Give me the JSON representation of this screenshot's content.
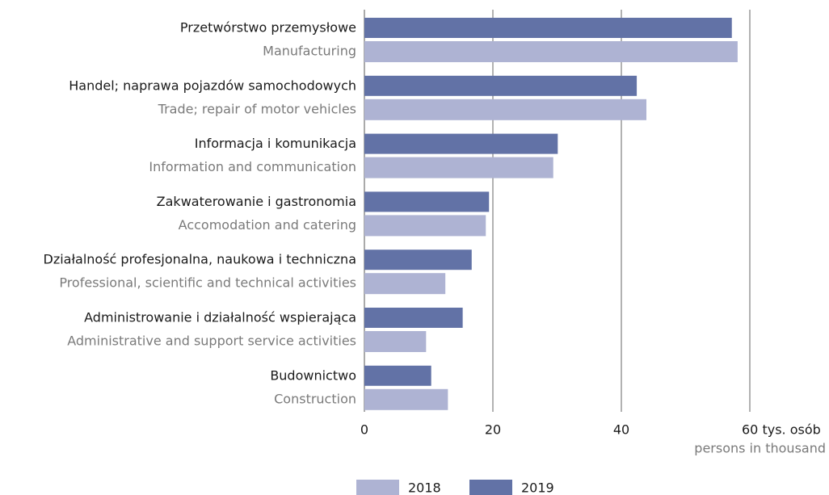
{
  "chart_data": {
    "type": "bar",
    "orientation": "horizontal",
    "categories": [
      "Przetwórstwo przemysłowe",
      "Handel; naprawa pojazdów samochodowych",
      "Informacja i komunikacja",
      "Zakwaterowanie i gastronomia",
      "Działalność profesjonalna, naukowa i techniczna",
      "Administrowanie i działalność wspierająca",
      "Budownictwo"
    ],
    "categories_en": [
      "Manufacturing",
      "Trade; repair of motor vehicles",
      "Information and communication",
      "Accomodation and catering",
      "Professional, scientific and technical activities",
      "Administrative and support service activities",
      "Construction"
    ],
    "series": [
      {
        "name": "2019",
        "color": "#6272a6",
        "values": [
          57.2,
          42.4,
          30.1,
          19.4,
          16.7,
          15.3,
          10.4
        ]
      },
      {
        "name": "2018",
        "color": "#aeb3d3",
        "values": [
          58.1,
          43.9,
          29.4,
          18.9,
          12.6,
          9.6,
          13.0
        ]
      }
    ],
    "xlim": [
      0,
      60
    ],
    "xticks": [
      0,
      20,
      40,
      {
        "value": 60,
        "label": "60 tys. osób"
      }
    ],
    "xlabel": "persons in thousand",
    "grid": true,
    "legend": "bottom"
  }
}
